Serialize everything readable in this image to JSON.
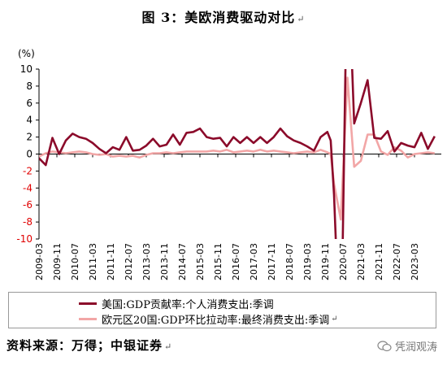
{
  "figure": {
    "title": "图 3：美欧消费驱动对比",
    "source": "资料来源：万得；中银证券",
    "watermark": "凭润观涛"
  },
  "colors": {
    "us": "#8b0a2a",
    "eu": "#f2a6a6",
    "axis": "#000000"
  },
  "chart_data": {
    "type": "line",
    "unit_label": "(%)",
    "ylim": [
      -10,
      10
    ],
    "yticks": [
      -10,
      -8,
      -6,
      -4,
      -2,
      0,
      2,
      4,
      6,
      8,
      10
    ],
    "xlim": [
      "2009-03",
      "2024-03"
    ],
    "xticks": [
      "2009-03",
      "2009-11",
      "2010-07",
      "2011-03",
      "2011-11",
      "2012-07",
      "2013-03",
      "2013-11",
      "2014-07",
      "2015-03",
      "2015-11",
      "2016-07",
      "2017-03",
      "2017-11",
      "2018-07",
      "2019-03",
      "2019-11",
      "2020-07",
      "2021-03",
      "2021-11",
      "2022-07",
      "2023-03"
    ],
    "grid": false,
    "legend_position": "bottom",
    "series": [
      {
        "name": "美国:GDP贡献率:个人消费支出:季调",
        "color_key": "us",
        "points": [
          [
            "2009-03",
            -0.5
          ],
          [
            "2009-06",
            -1.3
          ],
          [
            "2009-09",
            1.9
          ],
          [
            "2009-12",
            0.0
          ],
          [
            "2010-03",
            1.6
          ],
          [
            "2010-06",
            2.4
          ],
          [
            "2010-09",
            2.0
          ],
          [
            "2010-12",
            1.8
          ],
          [
            "2011-03",
            1.3
          ],
          [
            "2011-06",
            0.6
          ],
          [
            "2011-09",
            0.1
          ],
          [
            "2011-12",
            0.8
          ],
          [
            "2012-03",
            0.5
          ],
          [
            "2012-06",
            2.0
          ],
          [
            "2012-09",
            0.4
          ],
          [
            "2012-12",
            0.5
          ],
          [
            "2013-03",
            1.0
          ],
          [
            "2013-06",
            1.8
          ],
          [
            "2013-09",
            0.9
          ],
          [
            "2013-12",
            1.1
          ],
          [
            "2014-03",
            2.3
          ],
          [
            "2014-06",
            1.1
          ],
          [
            "2014-09",
            2.5
          ],
          [
            "2014-12",
            2.6
          ],
          [
            "2015-03",
            3.0
          ],
          [
            "2015-06",
            2.0
          ],
          [
            "2015-09",
            1.8
          ],
          [
            "2015-12",
            1.9
          ],
          [
            "2016-03",
            0.9
          ],
          [
            "2016-06",
            2.0
          ],
          [
            "2016-09",
            1.3
          ],
          [
            "2016-12",
            2.0
          ],
          [
            "2017-03",
            1.3
          ],
          [
            "2017-06",
            2.0
          ],
          [
            "2017-09",
            1.3
          ],
          [
            "2017-12",
            2.0
          ],
          [
            "2018-03",
            3.0
          ],
          [
            "2018-06",
            2.1
          ],
          [
            "2018-09",
            1.6
          ],
          [
            "2018-12",
            1.3
          ],
          [
            "2019-03",
            0.9
          ],
          [
            "2019-06",
            0.4
          ],
          [
            "2019-09",
            2.0
          ],
          [
            "2019-12",
            2.6
          ],
          [
            "2019-12b",
            1.6
          ],
          [
            "2020-03",
            -4.8
          ],
          [
            "2020-06",
            -25.0
          ],
          [
            "2020-09",
            25.0
          ],
          [
            "2020-12",
            3.6
          ],
          [
            "2021-03",
            6.0
          ],
          [
            "2021-06",
            8.7
          ],
          [
            "2021-09",
            1.9
          ],
          [
            "2021-12",
            1.8
          ],
          [
            "2022-03",
            2.7
          ],
          [
            "2022-06",
            0.3
          ],
          [
            "2022-09",
            1.3
          ],
          [
            "2022-12",
            1.0
          ],
          [
            "2023-03",
            0.8
          ],
          [
            "2023-06",
            2.5
          ],
          [
            "2023-09",
            0.6
          ],
          [
            "2023-12",
            2.1
          ]
        ]
      },
      {
        "name": "欧元区20国:GDP环比拉动率:最终消费支出:季调",
        "color_key": "eu",
        "points": [
          [
            "2009-03",
            -0.3
          ],
          [
            "2009-06",
            0.1
          ],
          [
            "2009-09",
            0.3
          ],
          [
            "2009-12",
            0.2
          ],
          [
            "2010-03",
            0.1
          ],
          [
            "2010-06",
            0.2
          ],
          [
            "2010-09",
            0.3
          ],
          [
            "2010-12",
            0.2
          ],
          [
            "2011-03",
            0.0
          ],
          [
            "2011-06",
            -0.1
          ],
          [
            "2011-09",
            0.0
          ],
          [
            "2011-12",
            -0.3
          ],
          [
            "2012-03",
            -0.2
          ],
          [
            "2012-06",
            -0.3
          ],
          [
            "2012-09",
            -0.2
          ],
          [
            "2012-12",
            -0.4
          ],
          [
            "2013-03",
            -0.1
          ],
          [
            "2013-06",
            0.1
          ],
          [
            "2013-09",
            0.1
          ],
          [
            "2013-12",
            0.2
          ],
          [
            "2014-03",
            0.1
          ],
          [
            "2014-06",
            0.2
          ],
          [
            "2014-09",
            0.3
          ],
          [
            "2014-12",
            0.3
          ],
          [
            "2015-03",
            0.3
          ],
          [
            "2015-06",
            0.3
          ],
          [
            "2015-09",
            0.4
          ],
          [
            "2015-12",
            0.3
          ],
          [
            "2016-03",
            0.5
          ],
          [
            "2016-06",
            0.2
          ],
          [
            "2016-09",
            0.3
          ],
          [
            "2016-12",
            0.4
          ],
          [
            "2017-03",
            0.3
          ],
          [
            "2017-06",
            0.5
          ],
          [
            "2017-09",
            0.3
          ],
          [
            "2017-12",
            0.4
          ],
          [
            "2018-03",
            0.3
          ],
          [
            "2018-06",
            0.2
          ],
          [
            "2018-09",
            0.1
          ],
          [
            "2018-12",
            0.2
          ],
          [
            "2019-03",
            0.3
          ],
          [
            "2019-06",
            0.2
          ],
          [
            "2019-09",
            0.5
          ],
          [
            "2019-12",
            0.2
          ],
          [
            "2019-12b",
            0.0
          ],
          [
            "2020-03",
            -3.5
          ],
          [
            "2020-06",
            -7.7
          ],
          [
            "2020-09",
            9.0
          ],
          [
            "2020-12",
            -1.5
          ],
          [
            "2021-03",
            -0.8
          ],
          [
            "2021-06",
            2.3
          ],
          [
            "2021-09",
            2.3
          ],
          [
            "2021-12",
            0.3
          ],
          [
            "2022-03",
            -0.1
          ],
          [
            "2022-06",
            0.8
          ],
          [
            "2022-09",
            0.4
          ],
          [
            "2022-12",
            -0.4
          ],
          [
            "2023-03",
            0.0
          ],
          [
            "2023-06",
            0.1
          ],
          [
            "2023-09",
            0.2
          ],
          [
            "2023-12",
            0.1
          ]
        ]
      }
    ]
  }
}
